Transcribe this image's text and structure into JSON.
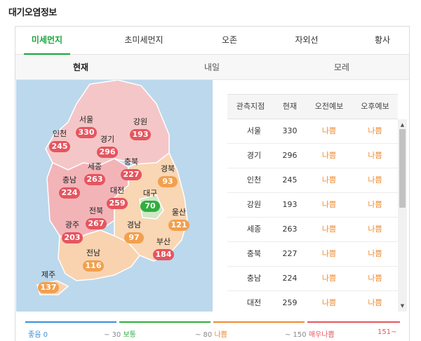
{
  "section_title": "대기오염정보",
  "tabs": [
    {
      "label": "미세먼지",
      "active": true
    },
    {
      "label": "초미세먼지",
      "active": false
    },
    {
      "label": "오존",
      "active": false
    },
    {
      "label": "자외선",
      "active": false
    },
    {
      "label": "황사",
      "active": false
    }
  ],
  "subtabs": [
    {
      "label": "현재",
      "active": true
    },
    {
      "label": "내일",
      "active": false
    },
    {
      "label": "모레",
      "active": false
    }
  ],
  "map": {
    "regions": [
      {
        "name": "서울",
        "value": "330",
        "level": "red"
      },
      {
        "name": "인천",
        "value": "245",
        "level": "red"
      },
      {
        "name": "경기",
        "value": "296",
        "level": "red"
      },
      {
        "name": "강원",
        "value": "193",
        "level": "red"
      },
      {
        "name": "세종",
        "value": "263",
        "level": "red"
      },
      {
        "name": "충북",
        "value": "227",
        "level": "red"
      },
      {
        "name": "충남",
        "value": "224",
        "level": "red"
      },
      {
        "name": "경북",
        "value": "93",
        "level": "orange"
      },
      {
        "name": "대전",
        "value": "259",
        "level": "red"
      },
      {
        "name": "대구",
        "value": "70",
        "level": "green"
      },
      {
        "name": "전북",
        "value": "267",
        "level": "red"
      },
      {
        "name": "울산",
        "value": "121",
        "level": "orange"
      },
      {
        "name": "광주",
        "value": "203",
        "level": "red"
      },
      {
        "name": "경남",
        "value": "97",
        "level": "orange"
      },
      {
        "name": "부산",
        "value": "184",
        "level": "red"
      },
      {
        "name": "전남",
        "value": "116",
        "level": "orange"
      },
      {
        "name": "제주",
        "value": "137",
        "level": "orange"
      }
    ]
  },
  "table": {
    "headers": [
      "관측지점",
      "현재",
      "오전예보",
      "오후예보"
    ],
    "rows": [
      {
        "site": "서울",
        "current": "330",
        "am": "나쁨",
        "pm": "나쁨"
      },
      {
        "site": "경기",
        "current": "296",
        "am": "나쁨",
        "pm": "나쁨"
      },
      {
        "site": "인천",
        "current": "245",
        "am": "나쁨",
        "pm": "나쁨"
      },
      {
        "site": "강원",
        "current": "193",
        "am": "나쁨",
        "pm": "나쁨"
      },
      {
        "site": "세종",
        "current": "263",
        "am": "나쁨",
        "pm": "나쁨"
      },
      {
        "site": "충북",
        "current": "227",
        "am": "나쁨",
        "pm": "나쁨"
      },
      {
        "site": "충남",
        "current": "224",
        "am": "나쁨",
        "pm": "나쁨"
      },
      {
        "site": "대전",
        "current": "259",
        "am": "나쁨",
        "pm": "나쁨"
      }
    ]
  },
  "legend": [
    {
      "range": "좋음 0",
      "label": "",
      "color": "#3b8fd8"
    },
    {
      "range": "~ 30",
      "label": "보통",
      "color": "#2fae3f"
    },
    {
      "range": "~ 80",
      "label": "나쁨",
      "color": "#ef8a2e"
    },
    {
      "range": "~ 150",
      "label": "매우나쁨",
      "color": "#e5555f"
    },
    {
      "range": "151~",
      "label": "",
      "color": "#e5555f"
    }
  ],
  "colors": {
    "accent": "#1aa53b",
    "level_red": "#e5555f",
    "level_orange": "#f2a04e",
    "level_green": "#2fae3f"
  }
}
